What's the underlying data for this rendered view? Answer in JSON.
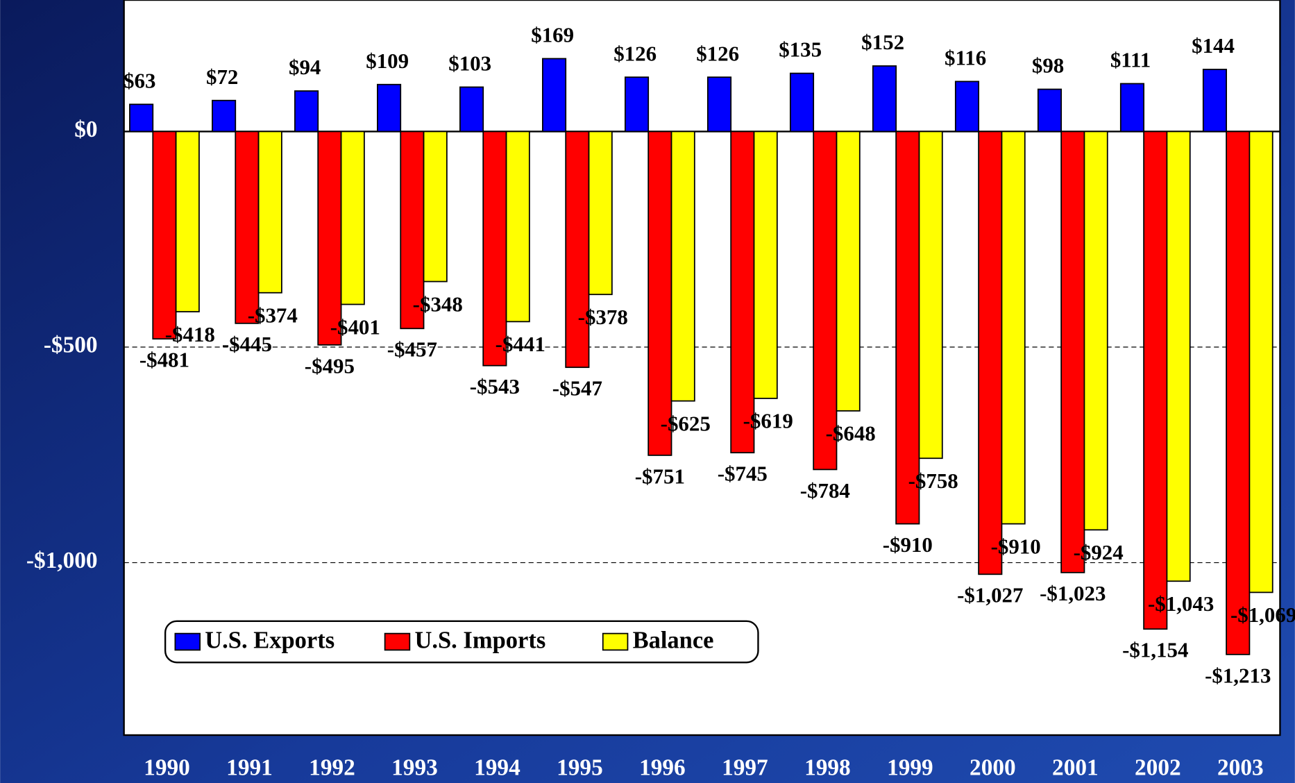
{
  "chart_data": {
    "type": "bar",
    "categories": [
      "1990",
      "1991",
      "1992",
      "1993",
      "1994",
      "1995",
      "1996",
      "1997",
      "1998",
      "1999",
      "2000",
      "2001",
      "2002",
      "2003"
    ],
    "series": [
      {
        "name": "U.S. Exports",
        "color": "#0000ff",
        "values": [
          63,
          72,
          94,
          109,
          103,
          169,
          126,
          126,
          135,
          152,
          116,
          98,
          111,
          144
        ],
        "value_labels": [
          "$63",
          "$72",
          "$94",
          "$109",
          "$103",
          "$169",
          "$126",
          "$126",
          "$135",
          "$152",
          "$116",
          "$98",
          "$111",
          "$144"
        ]
      },
      {
        "name": "U.S. Imports",
        "color": "#ff0000",
        "values": [
          -481,
          -445,
          -495,
          -457,
          -543,
          -547,
          -751,
          -745,
          -784,
          -910,
          -1027,
          -1023,
          -1154,
          -1213
        ],
        "value_labels": [
          "-$481",
          "-$445",
          "-$495",
          "-$457",
          "-$543",
          "-$547",
          "-$751",
          "-$745",
          "-$784",
          "-$910",
          "-$1,027",
          "-$1,023",
          "-$1,154",
          "-$1,213"
        ]
      },
      {
        "name": "Balance",
        "color": "#ffff00",
        "values": [
          -418,
          -374,
          -401,
          -348,
          -441,
          -378,
          -625,
          -619,
          -648,
          -758,
          -910,
          -924,
          -1043,
          -1069
        ],
        "value_labels": [
          "-$418",
          "-$374",
          "-$401",
          "-$348",
          "-$441",
          "-$378",
          "-$625",
          "-$619",
          "-$648",
          "-$758",
          "-$910",
          "-$924",
          "-$1,043",
          "-$1,069"
        ]
      }
    ],
    "ylim": [
      -1400,
      305
    ],
    "yticks": [
      {
        "value": 0,
        "label": "$0"
      },
      {
        "value": -500,
        "label": "-$500"
      },
      {
        "value": -1000,
        "label": "-$1,000"
      }
    ],
    "grid": true,
    "legend": "lower left"
  }
}
